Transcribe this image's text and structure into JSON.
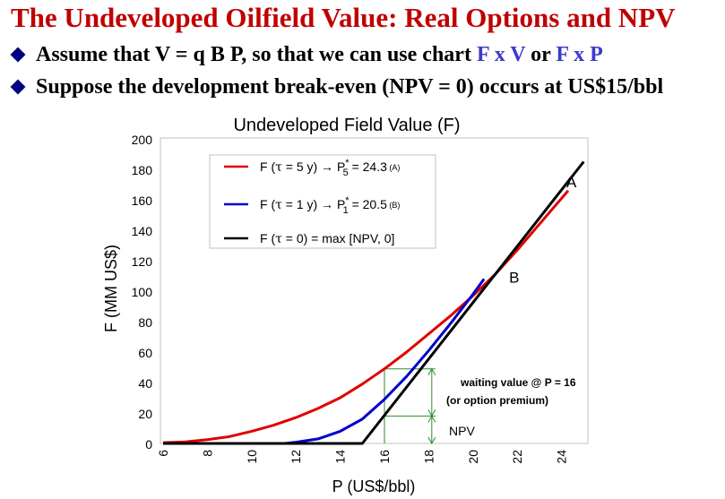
{
  "title": "The Undeveloped Oilfield Value: Real Options and NPV",
  "bullets": {
    "b1": {
      "lead": "Assume that V = q B P, so that we can use chart ",
      "e1": "F x V",
      "mid": " or ",
      "e2": "F x P"
    },
    "b2": "Suppose the development break-even (NPV = 0) occurs at US$15/bbl"
  },
  "chart_data": {
    "type": "line",
    "title": "Undeveloped Field Value (F)",
    "xlabel": "P (US$/bbl)",
    "ylabel": "F (MM US$)",
    "xlim": [
      6,
      25
    ],
    "ylim": [
      0,
      200
    ],
    "xticks": [
      6,
      8,
      10,
      12,
      14,
      16,
      18,
      20,
      22,
      24
    ],
    "yticks": [
      0,
      20,
      40,
      60,
      80,
      100,
      120,
      140,
      160,
      180,
      200
    ],
    "series": [
      {
        "name": "F (τ = 5 y) → P5* = 24.3 (A)",
        "color": "#e00000",
        "x": [
          6,
          7,
          8,
          9,
          10,
          11,
          12,
          13,
          14,
          15,
          16,
          17,
          18,
          19,
          20,
          21,
          22,
          23,
          24.3
        ],
        "y": [
          0.5,
          1,
          2.5,
          4.5,
          8,
          12,
          17,
          23,
          30,
          39,
          49,
          60,
          72,
          84,
          97,
          111,
          127,
          144,
          166
        ]
      },
      {
        "name": "F (τ = 1 y) → P1* = 20.5 (B)",
        "color": "#0000cc",
        "x": [
          11.5,
          12,
          13,
          14,
          15,
          16,
          17,
          18,
          19,
          20,
          20.5
        ],
        "y": [
          0,
          0.8,
          3,
          8,
          16,
          29,
          44,
          61,
          79,
          98,
          108
        ]
      },
      {
        "name": "F (τ = 0) = max [NPV, 0]",
        "color": "#000000",
        "x": [
          6,
          15,
          25
        ],
        "y": [
          0,
          0,
          185
        ]
      }
    ],
    "legend": {
      "entries": [
        {
          "prefix": "F (",
          "tau": "τ",
          "eq": " = 5 y)",
          "arrow": "→",
          "p": "P",
          "sup": "*",
          "sub": "5",
          "rest": " = 24.3",
          "tag": "(A)"
        },
        {
          "prefix": "F (",
          "tau": "τ",
          "eq": " = 1 y)",
          "arrow": "→",
          "p": "P",
          "sup": "*",
          "sub": "1",
          "rest": " = 20.5",
          "tag": "(B)"
        },
        {
          "prefix": "F (",
          "tau": "τ",
          "eq": " = 0) = max [NPV, 0]"
        }
      ]
    },
    "markers": [
      {
        "label": "A",
        "x": 24.3,
        "y": 166
      },
      {
        "label": "B",
        "x": 20.5,
        "y": 108
      }
    ],
    "annotation": {
      "p_value": 16,
      "npv_value": 18,
      "option_value": 49,
      "waiting_line1": "waiting value @ P = 16",
      "waiting_line2": "(or option premium)",
      "npv_label": "NPV",
      "color": "#2e8b2e"
    }
  }
}
